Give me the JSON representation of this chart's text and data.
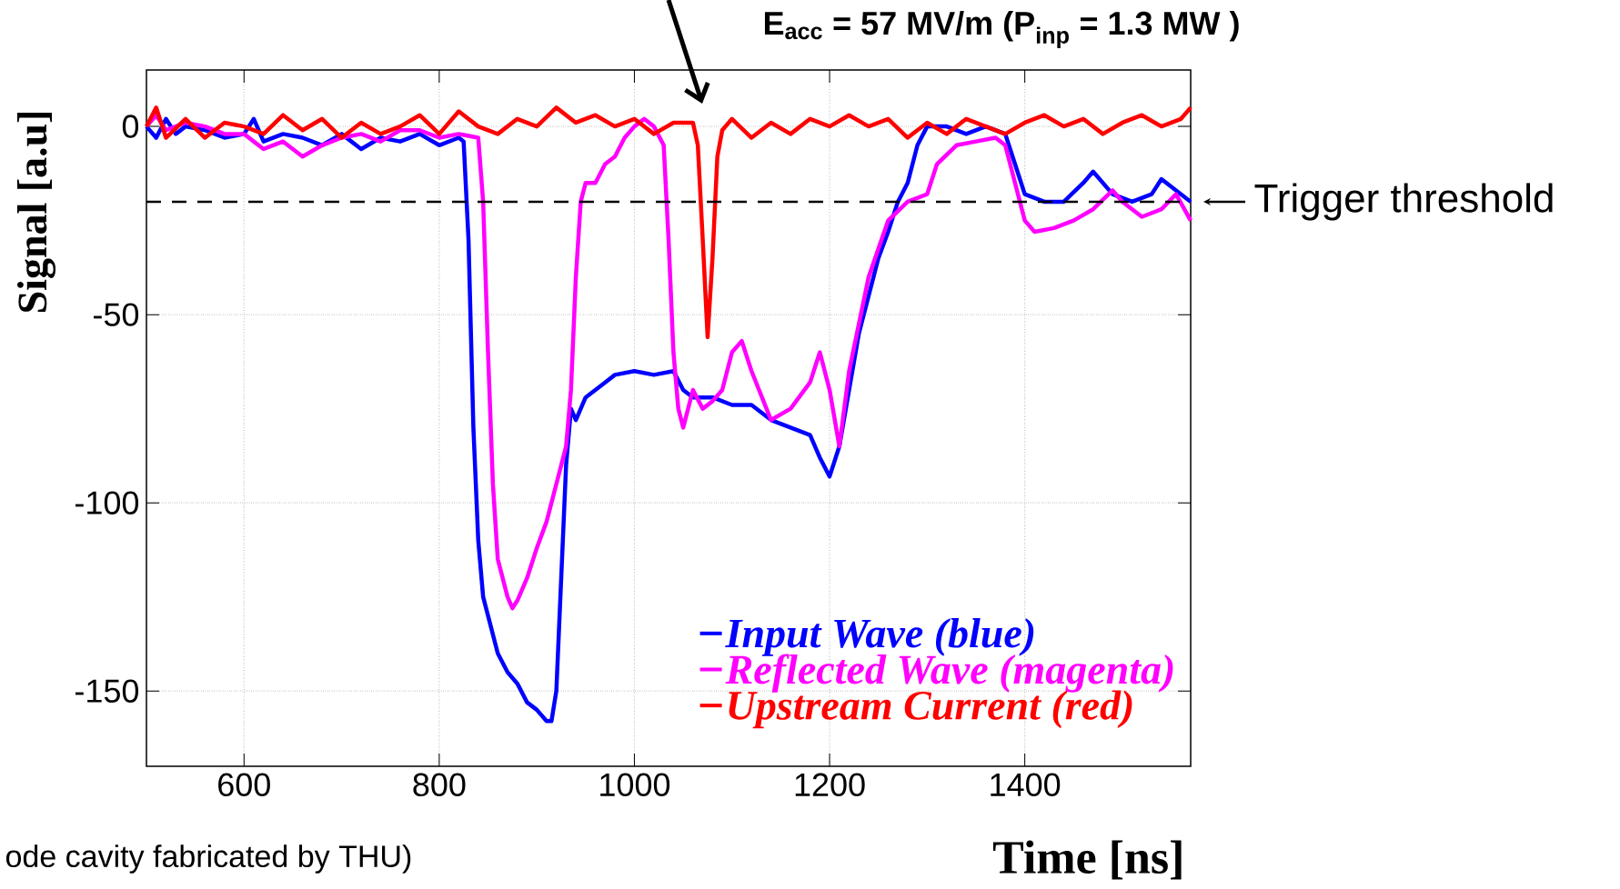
{
  "chart_data": {
    "type": "line",
    "xlabel": "Time [ns]",
    "ylabel": "Signal [a.u]",
    "xlim": [
      500,
      1570
    ],
    "ylim": [
      -170,
      15
    ],
    "xticks": [
      600,
      800,
      1000,
      1200,
      1400
    ],
    "yticks": [
      -150,
      -100,
      -50,
      0
    ],
    "grid": true,
    "legend": "bottom right",
    "ref_lines": [
      {
        "axis": "y",
        "value": -20,
        "label": "Trigger threshold",
        "color": "#000000",
        "line_style": "dashed"
      }
    ],
    "annotations": [
      "E$_{acc}$ = 57 MV/m (P$_{inp}$ = 1.3 MW )",
      "ode cavity fabricated by THU)"
    ],
    "series": [
      {
        "name": "Input Wave (blue)",
        "color": "#0000ff",
        "x": [
          500,
          510,
          520,
          530,
          540,
          560,
          580,
          600,
          610,
          620,
          640,
          660,
          680,
          700,
          720,
          740,
          760,
          780,
          800,
          820,
          825,
          830,
          835,
          840,
          845,
          850,
          860,
          870,
          880,
          890,
          900,
          910,
          915,
          920,
          925,
          930,
          935,
          940,
          950,
          960,
          970,
          980,
          1000,
          1020,
          1040,
          1050,
          1060,
          1080,
          1100,
          1120,
          1140,
          1160,
          1180,
          1190,
          1200,
          1210,
          1220,
          1230,
          1240,
          1250,
          1260,
          1270,
          1280,
          1290,
          1300,
          1320,
          1340,
          1360,
          1380,
          1390,
          1400,
          1420,
          1440,
          1460,
          1470,
          1490,
          1510,
          1530,
          1540,
          1555,
          1570
        ],
        "values": [
          0,
          -3,
          2,
          -2,
          0,
          -1,
          -3,
          -2,
          2,
          -4,
          -2,
          -3,
          -5,
          -2,
          -6,
          -3,
          -4,
          -2,
          -5,
          -3,
          -4,
          -30,
          -80,
          -110,
          -125,
          -130,
          -140,
          -145,
          -148,
          -153,
          -155,
          -158,
          -158,
          -150,
          -120,
          -90,
          -75,
          -78,
          -72,
          -70,
          -68,
          -66,
          -65,
          -66,
          -65,
          -70,
          -72,
          -72,
          -74,
          -74,
          -78,
          -80,
          -82,
          -88,
          -93,
          -85,
          -70,
          -55,
          -45,
          -35,
          -28,
          -20,
          -15,
          -5,
          0,
          0,
          -2,
          0,
          -2,
          -10,
          -18,
          -20,
          -20,
          -15,
          -12,
          -18,
          -20,
          -18,
          -14,
          -17,
          -20
        ]
      },
      {
        "name": "Reflected Wave (magenta)",
        "color": "#ff00ff",
        "x": [
          500,
          510,
          520,
          540,
          560,
          580,
          600,
          620,
          640,
          660,
          680,
          700,
          720,
          740,
          760,
          780,
          800,
          820,
          840,
          845,
          850,
          855,
          860,
          870,
          875,
          880,
          890,
          900,
          910,
          920,
          930,
          935,
          940,
          945,
          950,
          960,
          970,
          980,
          990,
          1000,
          1010,
          1020,
          1030,
          1035,
          1040,
          1045,
          1050,
          1060,
          1070,
          1080,
          1090,
          1100,
          1110,
          1120,
          1140,
          1160,
          1180,
          1190,
          1200,
          1210,
          1220,
          1240,
          1260,
          1280,
          1300,
          1310,
          1330,
          1350,
          1370,
          1380,
          1390,
          1400,
          1410,
          1430,
          1450,
          1470,
          1490,
          1500,
          1520,
          1540,
          1555,
          1570
        ],
        "values": [
          0,
          3,
          -1,
          1,
          0,
          -2,
          -2,
          -6,
          -4,
          -8,
          -5,
          -3,
          -2,
          -4,
          -1,
          -1,
          -3,
          -2,
          -3,
          -20,
          -60,
          -95,
          -115,
          -125,
          -128,
          -126,
          -120,
          -112,
          -105,
          -95,
          -85,
          -70,
          -40,
          -20,
          -15,
          -15,
          -10,
          -8,
          -3,
          0,
          2,
          0,
          -5,
          -30,
          -60,
          -75,
          -80,
          -70,
          -75,
          -73,
          -70,
          -60,
          -57,
          -65,
          -78,
          -75,
          -68,
          -60,
          -70,
          -85,
          -65,
          -40,
          -25,
          -20,
          -18,
          -10,
          -5,
          -4,
          -3,
          -5,
          -15,
          -25,
          -28,
          -27,
          -25,
          -22,
          -17,
          -20,
          -24,
          -22,
          -18,
          -25
        ]
      },
      {
        "name": "Upstream Current (red)",
        "color": "#ff0000",
        "x": [
          500,
          510,
          520,
          540,
          560,
          580,
          600,
          620,
          640,
          660,
          680,
          700,
          720,
          740,
          760,
          780,
          800,
          820,
          840,
          860,
          880,
          900,
          920,
          940,
          960,
          980,
          1000,
          1020,
          1040,
          1060,
          1065,
          1070,
          1075,
          1080,
          1085,
          1090,
          1100,
          1120,
          1140,
          1160,
          1180,
          1200,
          1220,
          1240,
          1260,
          1280,
          1300,
          1320,
          1340,
          1360,
          1380,
          1400,
          1420,
          1440,
          1460,
          1480,
          1500,
          1520,
          1540,
          1560,
          1570
        ],
        "values": [
          0,
          5,
          -3,
          2,
          -3,
          1,
          0,
          -2,
          3,
          -1,
          2,
          -3,
          1,
          -2,
          0,
          3,
          -2,
          4,
          0,
          -2,
          2,
          0,
          5,
          1,
          3,
          0,
          2,
          -2,
          1,
          1,
          -5,
          -30,
          -56,
          -35,
          -8,
          -1,
          2,
          -3,
          1,
          -2,
          2,
          0,
          3,
          0,
          2,
          -3,
          1,
          -2,
          2,
          0,
          -2,
          1,
          3,
          0,
          2,
          -2,
          1,
          3,
          0,
          2,
          5
        ]
      }
    ]
  }
}
